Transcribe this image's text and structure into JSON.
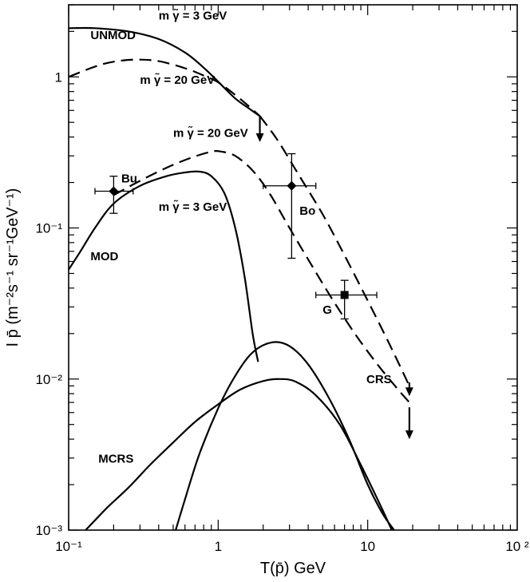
{
  "chart_data": {
    "type": "line",
    "xscale": "log",
    "yscale": "log",
    "xlim": [
      0.1,
      100
    ],
    "ylim": [
      0.001,
      3
    ],
    "xlabel": "T(p̄) GeV",
    "ylabel": "I p̄  (m⁻²s⁻¹ sr⁻¹GeV⁻¹)",
    "x_ticks": [
      {
        "value": 0.1,
        "label": "10⁻¹"
      },
      {
        "value": 1,
        "label": "1"
      },
      {
        "value": 10,
        "label": "10"
      },
      {
        "value": 100,
        "label": "10 ²"
      }
    ],
    "y_ticks": [
      {
        "value": 0.001,
        "label": "10⁻³"
      },
      {
        "value": 0.01,
        "label": "10⁻²"
      },
      {
        "value": 0.1,
        "label": "10⁻¹"
      },
      {
        "value": 1,
        "label": "1"
      }
    ],
    "series": [
      {
        "name": "UNMOD",
        "style": "solid",
        "x": [
          0.1,
          0.15,
          0.25,
          0.4,
          0.6,
          0.8,
          1.0,
          1.3,
          1.6,
          1.9
        ],
        "y": [
          2.1,
          2.1,
          2.0,
          1.78,
          1.45,
          1.15,
          0.93,
          0.72,
          0.62,
          0.55
        ]
      },
      {
        "name": "UNMOD",
        "style": "dashed",
        "x": [
          0.1,
          0.15,
          0.2,
          0.28,
          0.4,
          0.6,
          0.8,
          1.0,
          1.3,
          1.6,
          1.9
        ],
        "y": [
          1.0,
          1.17,
          1.26,
          1.3,
          1.27,
          1.14,
          1.02,
          0.92,
          0.76,
          0.64,
          0.55
        ]
      },
      {
        "name": "UNMOD",
        "style": "dashed",
        "x": [
          1.9,
          2.5,
          3.5,
          5,
          7,
          10,
          14,
          19
        ],
        "y": [
          0.55,
          0.38,
          0.22,
          0.123,
          0.066,
          0.033,
          0.017,
          0.009
        ]
      },
      {
        "name": "MOD",
        "style": "solid",
        "x": [
          0.1,
          0.12,
          0.15,
          0.2,
          0.3,
          0.45,
          0.6,
          0.75,
          0.9,
          1.1,
          1.3,
          1.5,
          1.7,
          1.85
        ],
        "y": [
          0.053,
          0.07,
          0.1,
          0.145,
          0.19,
          0.22,
          0.233,
          0.236,
          0.22,
          0.17,
          0.1,
          0.048,
          0.02,
          0.013
        ]
      },
      {
        "name": "MOD",
        "style": "dashed",
        "x": [
          0.2,
          0.3,
          0.45,
          0.65,
          0.9,
          1.05,
          1.3,
          1.7,
          2.2,
          3,
          4.2,
          6,
          8.5,
          12,
          16,
          19
        ],
        "y": [
          0.165,
          0.205,
          0.25,
          0.29,
          0.32,
          0.32,
          0.3,
          0.24,
          0.17,
          0.1,
          0.057,
          0.032,
          0.019,
          0.012,
          0.0085,
          0.007
        ]
      },
      {
        "name": "CRS",
        "style": "solid",
        "x": [
          0.52,
          0.6,
          0.75,
          1.0,
          1.3,
          1.7,
          2.3,
          3,
          4,
          5.5,
          7.5,
          10,
          12.5,
          15
        ],
        "y": [
          0.001,
          0.0016,
          0.0032,
          0.0064,
          0.0105,
          0.015,
          0.0175,
          0.0165,
          0.0125,
          0.0075,
          0.004,
          0.002,
          0.0013,
          0.001
        ]
      },
      {
        "name": "MCRS",
        "style": "solid",
        "x": [
          0.13,
          0.18,
          0.25,
          0.35,
          0.5,
          0.7,
          1.0,
          1.4,
          2.0,
          2.6,
          3.3,
          4.5,
          6.5,
          9,
          12,
          14.5
        ],
        "y": [
          0.001,
          0.0014,
          0.0019,
          0.0027,
          0.0038,
          0.0052,
          0.0068,
          0.0085,
          0.0097,
          0.01,
          0.0096,
          0.0078,
          0.005,
          0.0027,
          0.0015,
          0.001
        ]
      }
    ],
    "data_points": [
      {
        "label": "Bu",
        "marker": "diamond",
        "x": 0.2,
        "y": 0.175,
        "x_err": [
          0.15,
          0.27
        ],
        "y_err": [
          0.125,
          0.22
        ]
      },
      {
        "label": "Bo",
        "marker": "diamond",
        "x": 3.1,
        "y": 0.19,
        "x_err": [
          2.0,
          4.5
        ],
        "y_err": [
          0.063,
          0.31
        ]
      },
      {
        "label": "G",
        "marker": "square",
        "x": 7.0,
        "y": 0.036,
        "x_err": [
          4.5,
          11.5
        ],
        "y_err": [
          0.025,
          0.045
        ]
      }
    ],
    "arrows": [
      {
        "x": 1.9,
        "from_y": 0.55,
        "to_y": 0.37
      },
      {
        "x": 19,
        "from_y": 0.0095,
        "to_y": 0.0077
      },
      {
        "x": 19,
        "from_y": 0.0065,
        "to_y": 0.004
      }
    ],
    "annotations": [
      {
        "text": "m γ̃ = 3 GeV",
        "x": 0.4,
        "y": 2.4
      },
      {
        "text": "UNMOD",
        "x": 0.14,
        "y": 1.78
      },
      {
        "text": "m γ̃ = 20 GeV",
        "x": 0.3,
        "y": 0.9
      },
      {
        "text": "m γ̃ = 20 GeV",
        "x": 0.5,
        "y": 0.4
      },
      {
        "text": "Bu",
        "x": 0.225,
        "y": 0.2
      },
      {
        "text": "m γ̃ = 3 GeV",
        "x": 0.4,
        "y": 0.13
      },
      {
        "text": "Bo",
        "x": 3.5,
        "y": 0.122
      },
      {
        "text": "MOD",
        "x": 0.14,
        "y": 0.061
      },
      {
        "text": "G",
        "x": 5.0,
        "y": 0.027
      },
      {
        "text": "CRS",
        "x": 9.8,
        "y": 0.0094
      },
      {
        "text": "MCRS",
        "x": 0.158,
        "y": 0.0028
      }
    ],
    "grid": false
  }
}
